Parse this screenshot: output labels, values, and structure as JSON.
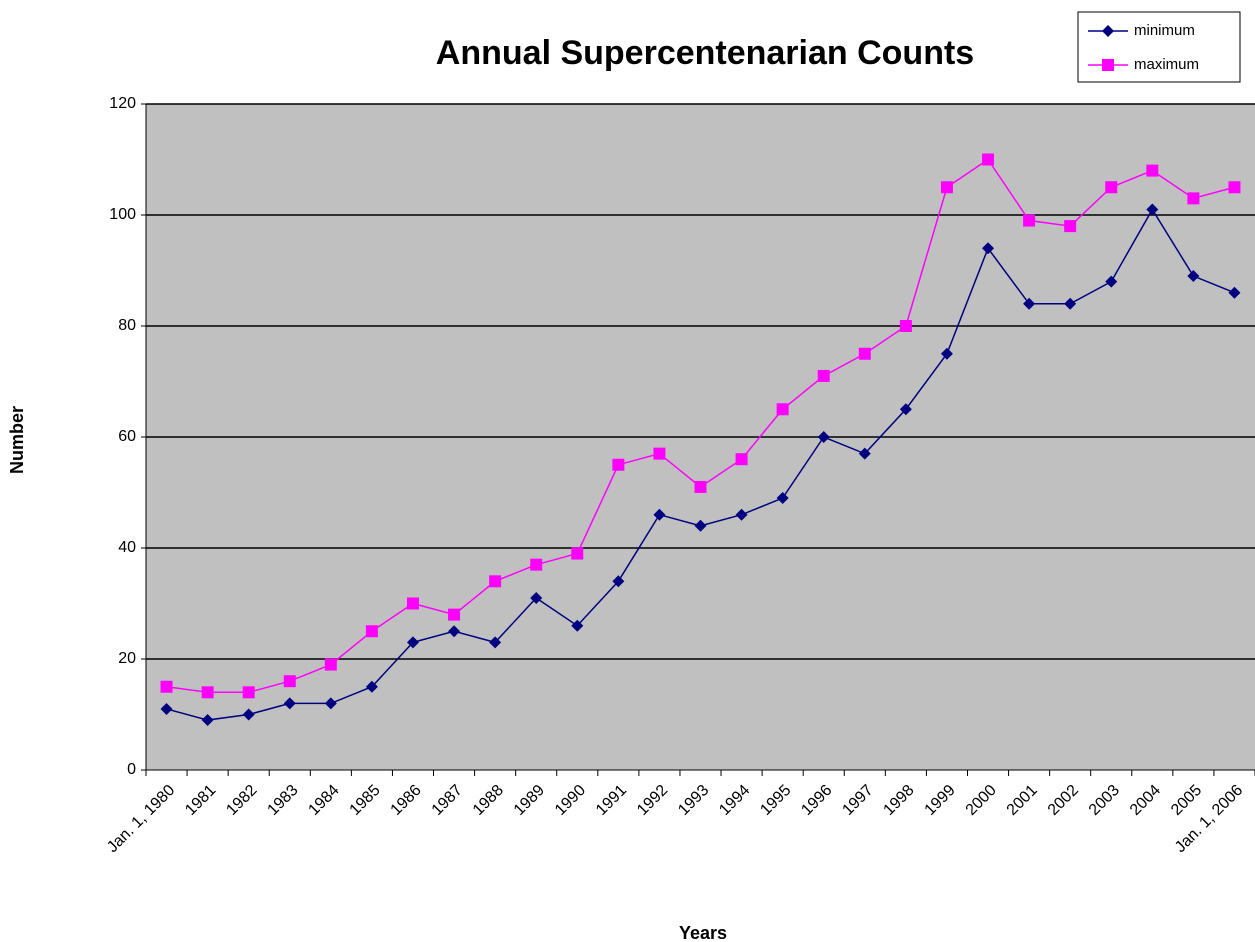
{
  "chart_data": {
    "type": "line",
    "title": "Annual Supercentenarian Counts",
    "x_label": "Years",
    "y_label": "Number",
    "categories": [
      "Jan. 1, 1980",
      "1981",
      "1982",
      "1983",
      "1984",
      "1985",
      "1986",
      "1987",
      "1988",
      "1989",
      "1990",
      "1991",
      "1992",
      "1993",
      "1994",
      "1995",
      "1996",
      "1997",
      "1998",
      "1999",
      "2000",
      "2001",
      "2002",
      "2003",
      "2004",
      "2005",
      "Jan. 1, 2006"
    ],
    "series": [
      {
        "name": "minimum",
        "color": "#000080",
        "marker": "diamond",
        "values": [
          11,
          9,
          10,
          12,
          12,
          15,
          23,
          25,
          23,
          31,
          26,
          34,
          46,
          44,
          46,
          49,
          60,
          57,
          65,
          75,
          94,
          84,
          84,
          88,
          101,
          89,
          86
        ]
      },
      {
        "name": "maximum",
        "color": "#ff00ff",
        "marker": "square",
        "values": [
          15,
          14,
          14,
          16,
          19,
          25,
          30,
          28,
          34,
          37,
          39,
          55,
          57,
          51,
          56,
          65,
          71,
          75,
          80,
          105,
          110,
          99,
          98,
          105,
          108,
          103,
          105
        ]
      }
    ],
    "ylim": [
      0,
      120
    ],
    "yticks": [
      0,
      20,
      40,
      60,
      80,
      100,
      120
    ],
    "grid": true,
    "legend": "top-right"
  }
}
